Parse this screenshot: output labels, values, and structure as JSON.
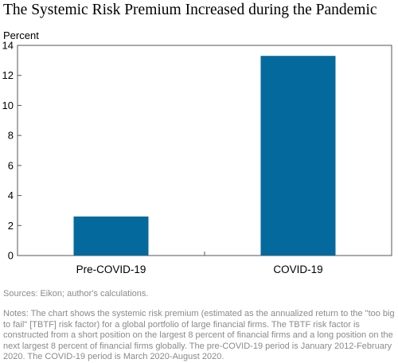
{
  "title": "The Systemic Risk Premium Increased during the Pandemic",
  "chart_data": {
    "type": "bar",
    "ylabel": "Percent",
    "categories": [
      "Pre-COVID-19",
      "COVID-19"
    ],
    "values": [
      2.6,
      13.3
    ],
    "ylim": [
      0,
      14
    ],
    "yticks": [
      0,
      2,
      4,
      6,
      8,
      10,
      12,
      14
    ],
    "bar_color": "#046a9e",
    "grid": false,
    "legend": "none"
  },
  "footer": {
    "sources": "Sources: Eikon; author's calculations.",
    "notes": "Notes: The chart shows the systemic risk premium (estimated as the annualized return to the \"too big to fail\" [TBTF] risk factor) for a global portfolio of large financial firms. The TBTF risk factor is constructed from a short position on the largest 8 percent of financial firms and a long position on the next largest 8 percent of financial firms globally. The pre-COVID-19 period is January 2012-February 2020. The COVID-19 period is March 2020-August 2020."
  }
}
